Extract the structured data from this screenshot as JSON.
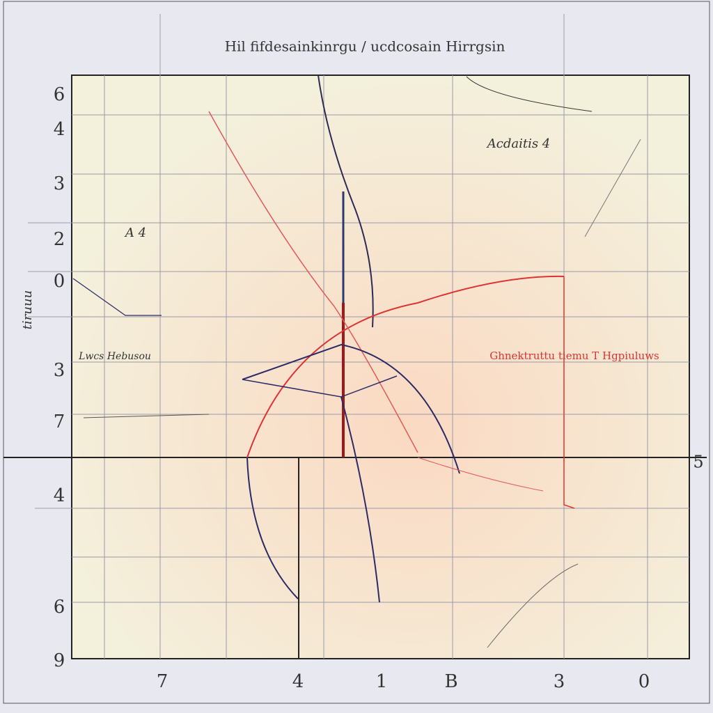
{
  "header": {
    "title": "Hil fifdesainkinrgu / ucdcosain Hirrgsin"
  },
  "y_labels": [
    "6",
    "4",
    "3",
    "2",
    "0",
    "3",
    "7",
    "4",
    "6",
    "9"
  ],
  "x_labels": [
    "7",
    "4",
    "1",
    "B",
    "3",
    "0"
  ],
  "annotations": {
    "top_right": "Acdaitis 4",
    "red_note": "Ghnektruttu tiemu T Hgpiuluws",
    "left_note": "Lwcs Hebusou",
    "left_a": "A 4",
    "vertical": "tiruuu",
    "right_axis": "5"
  }
}
